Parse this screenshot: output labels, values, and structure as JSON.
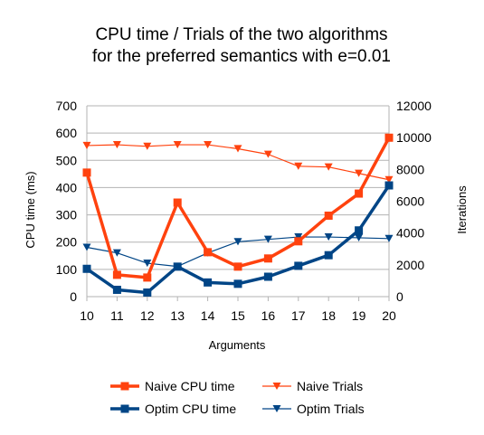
{
  "chart_data": {
    "type": "line",
    "title": [
      "CPU time / Trials of the two algorithms",
      "for the preferred semantics with e=0.01"
    ],
    "xlabel": "Arguments",
    "ylabel": "CPU time (ms)",
    "y2label": "Iterations",
    "categories": [
      "10",
      "11",
      "12",
      "13",
      "14",
      "15",
      "16",
      "17",
      "18",
      "19",
      "20"
    ],
    "ylim": [
      0,
      700
    ],
    "y2lim": [
      0,
      12000
    ],
    "yticks": [
      "0",
      "100",
      "200",
      "300",
      "400",
      "500",
      "600",
      "700"
    ],
    "y2ticks": [
      "0",
      "2000",
      "4000",
      "6000",
      "8000",
      "10000",
      "12000"
    ],
    "grid": true,
    "legend_position": "bottom",
    "series": [
      {
        "name": "Naive CPU time",
        "axis": "left",
        "color": "#ff420e",
        "marker": "square",
        "width": "thick",
        "values": [
          455,
          80,
          70,
          345,
          163,
          110,
          140,
          203,
          297,
          378,
          583
        ]
      },
      {
        "name": "Naive Trials",
        "axis": "right",
        "color": "#ff420e",
        "marker": "triangle-down",
        "width": "thin",
        "values": [
          9500,
          9550,
          9450,
          9550,
          9550,
          9300,
          8950,
          8200,
          8150,
          7750,
          7350
        ]
      },
      {
        "name": "Optim CPU time",
        "axis": "left",
        "color": "#004586",
        "marker": "square",
        "width": "thick",
        "values": [
          102,
          25,
          15,
          110,
          52,
          47,
          73,
          113,
          152,
          243,
          408
        ]
      },
      {
        "name": "Optim Trials",
        "axis": "right",
        "color": "#004586",
        "marker": "triangle-down",
        "width": "thin",
        "values": [
          3100,
          2750,
          2100,
          1900,
          2750,
          3450,
          3600,
          3750,
          3750,
          3700,
          3650
        ]
      }
    ]
  }
}
